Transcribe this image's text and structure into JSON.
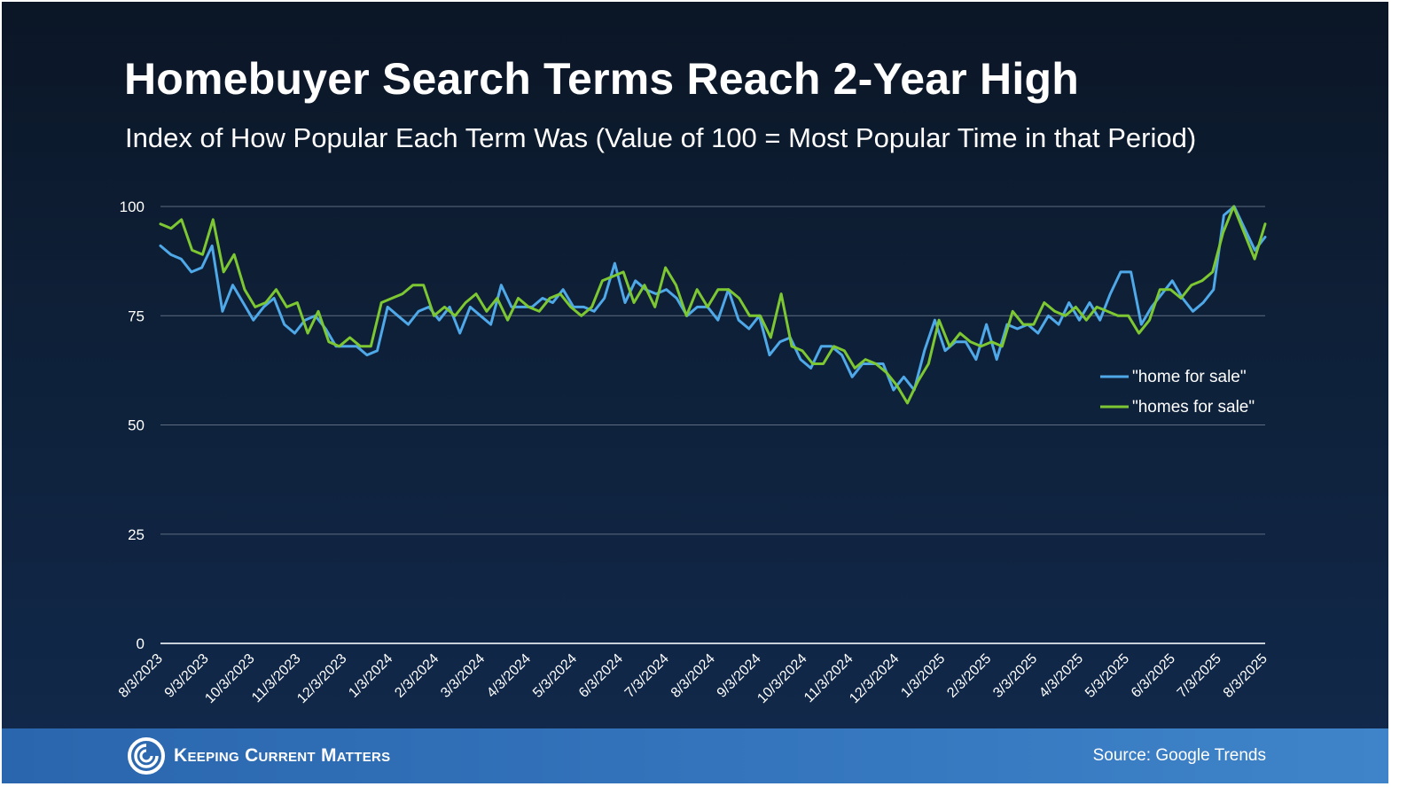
{
  "chart_data": {
    "type": "line",
    "title": "Homebuyer Search Terms Reach 2-Year High",
    "subtitle": "Index of How Popular Each Term Was (Value of 100 = Most Popular Time in that Period)",
    "xlabel": "",
    "ylabel": "",
    "ylim": [
      0,
      100
    ],
    "yticks": [
      "0",
      "25",
      "50",
      "75",
      "100"
    ],
    "grid": true,
    "legend_position": "right",
    "x_tick_labels": [
      "8/3/2023",
      "9/3/2023",
      "10/3/2023",
      "11/3/2023",
      "12/3/2023",
      "1/3/2024",
      "2/3/2024",
      "3/3/2024",
      "4/3/2024",
      "5/3/2024",
      "6/3/2024",
      "7/3/2024",
      "8/3/2024",
      "9/3/2024",
      "10/3/2024",
      "11/3/2024",
      "12/3/2024",
      "1/3/2025",
      "2/3/2025",
      "3/3/2025",
      "4/3/2025",
      "5/3/2025",
      "6/3/2025",
      "7/3/2025",
      "8/3/2025"
    ],
    "series": [
      {
        "name": "\"home for sale\"",
        "color": "#4fa8e8",
        "values": [
          91,
          89,
          88,
          85,
          86,
          91,
          76,
          82,
          78,
          74,
          77,
          79,
          73,
          71,
          74,
          75,
          72,
          68,
          68,
          68,
          66,
          67,
          77,
          75,
          73,
          76,
          77,
          74,
          77,
          71,
          77,
          75,
          73,
          82,
          77,
          77,
          77,
          79,
          78,
          81,
          77,
          77,
          76,
          79,
          87,
          78,
          83,
          81,
          80,
          81,
          79,
          75,
          77,
          77,
          74,
          81,
          74,
          72,
          75,
          66,
          69,
          70,
          65,
          63,
          68,
          68,
          66,
          61,
          64,
          64,
          64,
          58,
          61,
          58,
          67,
          74,
          67,
          69,
          69,
          65,
          73,
          65,
          73,
          72,
          73,
          71,
          75,
          73,
          78,
          74,
          78,
          74,
          80,
          85,
          85,
          73,
          77,
          80,
          83,
          79,
          76,
          78,
          81,
          98,
          100,
          95,
          90,
          93
        ],
        "color_name": "blue"
      },
      {
        "name": "\"homes for sale\"",
        "color": "#7dc832",
        "values": [
          96,
          95,
          97,
          90,
          89,
          97,
          85,
          89,
          81,
          77,
          78,
          81,
          77,
          78,
          71,
          76,
          69,
          68,
          70,
          68,
          68,
          78,
          79,
          80,
          82,
          82,
          75,
          77,
          75,
          78,
          80,
          76,
          79,
          74,
          79,
          77,
          76,
          79,
          80,
          77,
          75,
          77,
          83,
          84,
          85,
          78,
          82,
          77,
          86,
          82,
          75,
          81,
          77,
          81,
          81,
          79,
          75,
          75,
          70,
          80,
          68,
          67,
          64,
          64,
          68,
          67,
          63,
          65,
          64,
          62,
          59,
          55,
          60,
          64,
          74,
          68,
          71,
          69,
          68,
          69,
          68,
          76,
          73,
          73,
          78,
          76,
          75,
          77,
          74,
          77,
          76,
          75,
          75,
          71,
          74,
          81,
          81,
          79,
          82,
          83,
          85,
          94,
          100,
          94,
          88,
          96
        ],
        "color_name": "green"
      }
    ]
  },
  "footer": {
    "brand": "Keeping Current Matters",
    "source": "Source: Google Trends"
  },
  "icons": {
    "brand_logo": "kcm-swirl-logo-icon"
  }
}
